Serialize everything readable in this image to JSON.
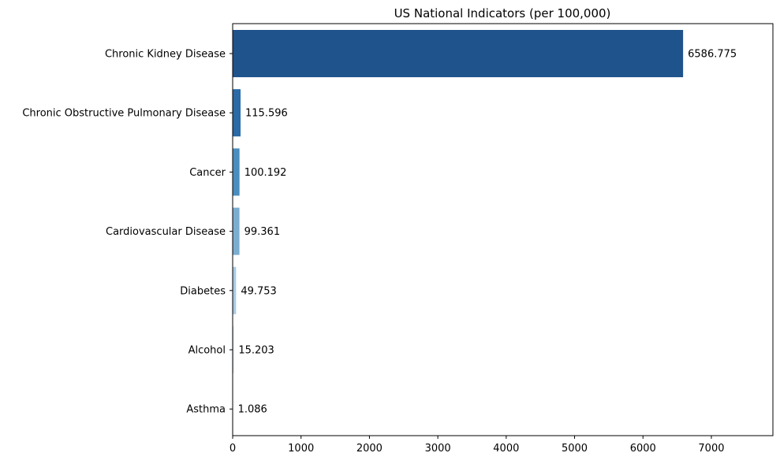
{
  "chart_data": {
    "type": "bar",
    "orientation": "horizontal",
    "title": "US National Indicators (per 100,000)",
    "xlabel": "",
    "ylabel": "",
    "categories": [
      "Chronic Kidney Disease",
      "Chronic Obstructive Pulmonary Disease",
      "Cancer",
      "Cardiovascular Disease",
      "Diabetes",
      "Alcohol",
      "Asthma"
    ],
    "values": [
      6586.775,
      115.596,
      100.192,
      99.361,
      49.753,
      15.203,
      1.086
    ],
    "value_labels": [
      "6586.775",
      "115.596",
      "100.192",
      "99.361",
      "49.753",
      "15.203",
      "1.086"
    ],
    "colors": [
      "#1f538c",
      "#2a6aa6",
      "#4a8ec0",
      "#7badd0",
      "#a9cbe3",
      "#c9def0",
      "#dbe8f4"
    ],
    "xlim": [
      0,
      7900
    ],
    "xticks": [
      0,
      1000,
      2000,
      3000,
      4000,
      5000,
      6000,
      7000
    ],
    "grid": false,
    "legend": "none"
  }
}
